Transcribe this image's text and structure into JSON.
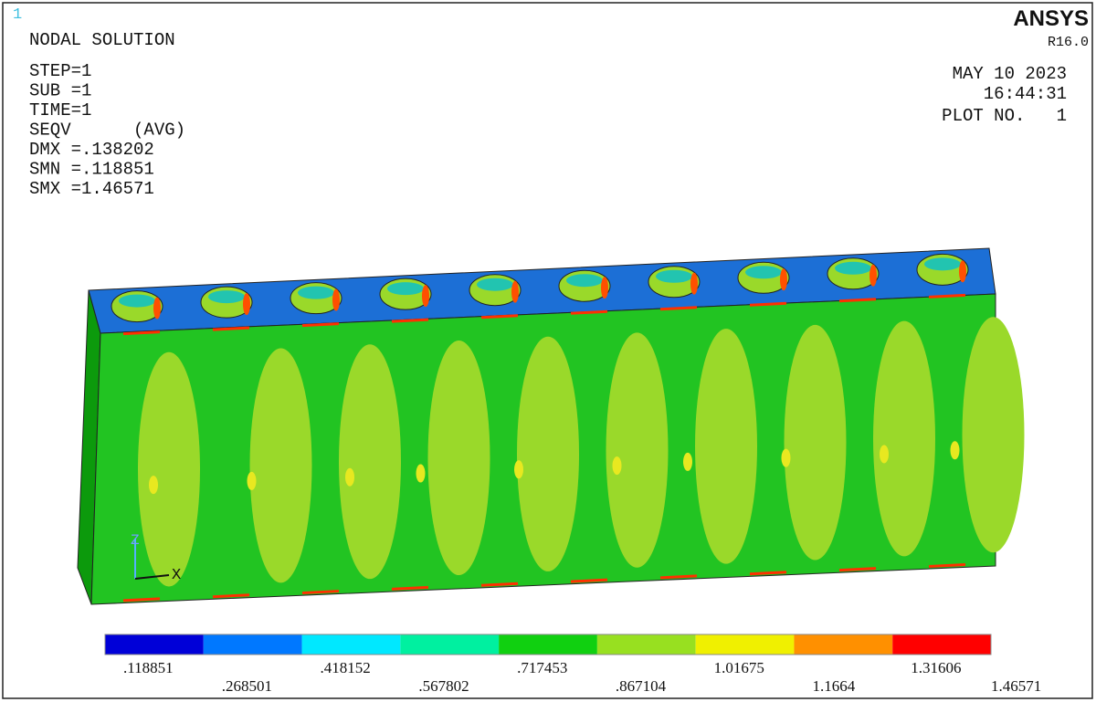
{
  "header": {
    "window_number": "1",
    "title": "NODAL SOLUTION",
    "brand": "ANSYS",
    "release": "R16.0",
    "date": "MAY 10 2023",
    "time": "16:44:31",
    "plot_number": "PLOT NO.   1"
  },
  "info": [
    "STEP=1",
    "SUB =1",
    "TIME=1",
    "SEQV      (AVG)",
    "DMX =.138202",
    "SMN =.118851",
    "SMX =1.46571"
  ],
  "triad": {
    "z": "Z",
    "x": "X"
  },
  "legend": {
    "colors": [
      "#0000d8",
      "#0078ff",
      "#00e8ff",
      "#00f0a0",
      "#10d010",
      "#98e020",
      "#f0f000",
      "#ff9000",
      "#ff0000"
    ],
    "labels": [
      ".118851",
      ".268501",
      ".418152",
      ".567802",
      ".717453",
      ".867104",
      "1.01675",
      "1.1664",
      "1.31606",
      "1.46571"
    ]
  }
}
